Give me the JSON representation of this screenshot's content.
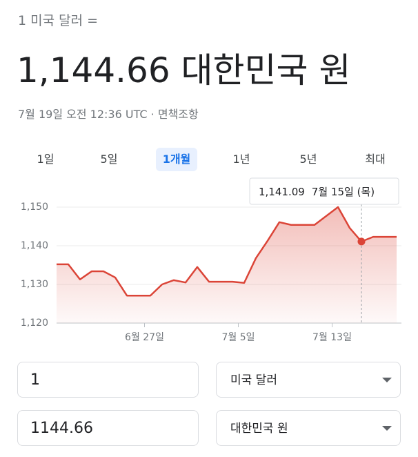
{
  "header": {
    "from": "1 미국 달러 =",
    "result": "1,144.66 대한민국 원",
    "timestamp": "7월 19일 오전 12:36 UTC · 면책조항"
  },
  "tabs": [
    "1일",
    "5일",
    "1개월",
    "1년",
    "5년",
    "최대"
  ],
  "selected_tab": 2,
  "chart_data": {
    "type": "line",
    "color": "#db4437",
    "values": [
      1135.2,
      1135.2,
      1131.3,
      1133.4,
      1133.4,
      1131.8,
      1127.1,
      1127.1,
      1127.1,
      1130.0,
      1131.1,
      1130.5,
      1134.5,
      1130.7,
      1130.7,
      1130.7,
      1130.4,
      1136.8,
      1141.3,
      1146.1,
      1145.4,
      1145.4,
      1145.4,
      1147.7,
      1150.0,
      1144.6,
      1141.09,
      1142.3,
      1142.3,
      1142.3
    ],
    "xlim": [
      0,
      29
    ],
    "xticks": [
      {
        "value": 7.5,
        "label": "6월 27일"
      },
      {
        "value": 15.5,
        "label": "7월 5일"
      },
      {
        "value": 23.5,
        "label": "7월 13일"
      }
    ],
    "ylim": [
      1120,
      1150
    ],
    "yticks": [
      {
        "value": 1120,
        "label": "1,120"
      },
      {
        "value": 1130,
        "label": "1,130"
      },
      {
        "value": 1140,
        "label": "1,140"
      },
      {
        "value": 1150,
        "label": "1,150"
      }
    ],
    "grid": true,
    "tooltip": {
      "value": 1141.09,
      "label": "1,141.09",
      "date": "7월 15일 (목)"
    }
  },
  "converter": {
    "amount_from": "1",
    "currency_from": "미국 달러",
    "amount_to": "1144.66",
    "currency_to": "대한민국 원"
  }
}
